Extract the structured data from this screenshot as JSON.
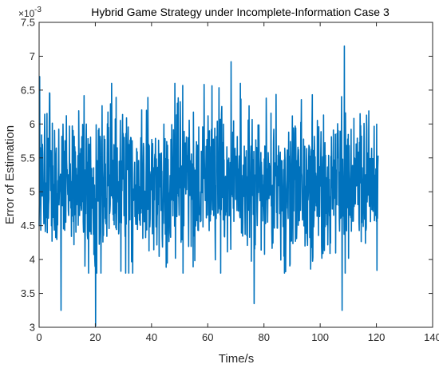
{
  "chart_data": {
    "type": "line",
    "title": "Hybrid Game Strategy under Incomplete-Information Case 3",
    "xlabel": "Time/s",
    "ylabel": "Error of Estimation",
    "y_exponent_base": "×10",
    "y_exponent_power": "-3",
    "xlim": [
      0,
      140
    ],
    "ylim": [
      3,
      7.5
    ],
    "xticks": [
      0,
      20,
      40,
      60,
      80,
      100,
      120,
      140
    ],
    "xtick_labels": [
      "0",
      "20",
      "40",
      "60",
      "80",
      "100",
      "120",
      "140"
    ],
    "yticks": [
      3,
      3.5,
      4,
      4.5,
      5,
      5.5,
      6,
      6.5,
      7,
      7.5
    ],
    "ytick_labels": [
      "3",
      "3.5",
      "4",
      "4.5",
      "5",
      "5.5",
      "6",
      "6.5",
      "7",
      "7.5"
    ],
    "grid": false,
    "line_color": "#0072BD",
    "series": [
      {
        "x_start": 0,
        "x_end": 120.6,
        "x_step": 0.1,
        "mean": 5.1,
        "typical_range": [
          3.8,
          6.6
        ],
        "notable_points": [
          {
            "x": 0.2,
            "y": 6.7
          },
          {
            "x": 20.1,
            "y": 3.02
          },
          {
            "x": 68.3,
            "y": 6.92
          },
          {
            "x": 108.6,
            "y": 7.15
          },
          {
            "x": 107.8,
            "y": 3.25
          },
          {
            "x": 7.8,
            "y": 3.25
          },
          {
            "x": 76.5,
            "y": 3.35
          }
        ]
      }
    ]
  }
}
